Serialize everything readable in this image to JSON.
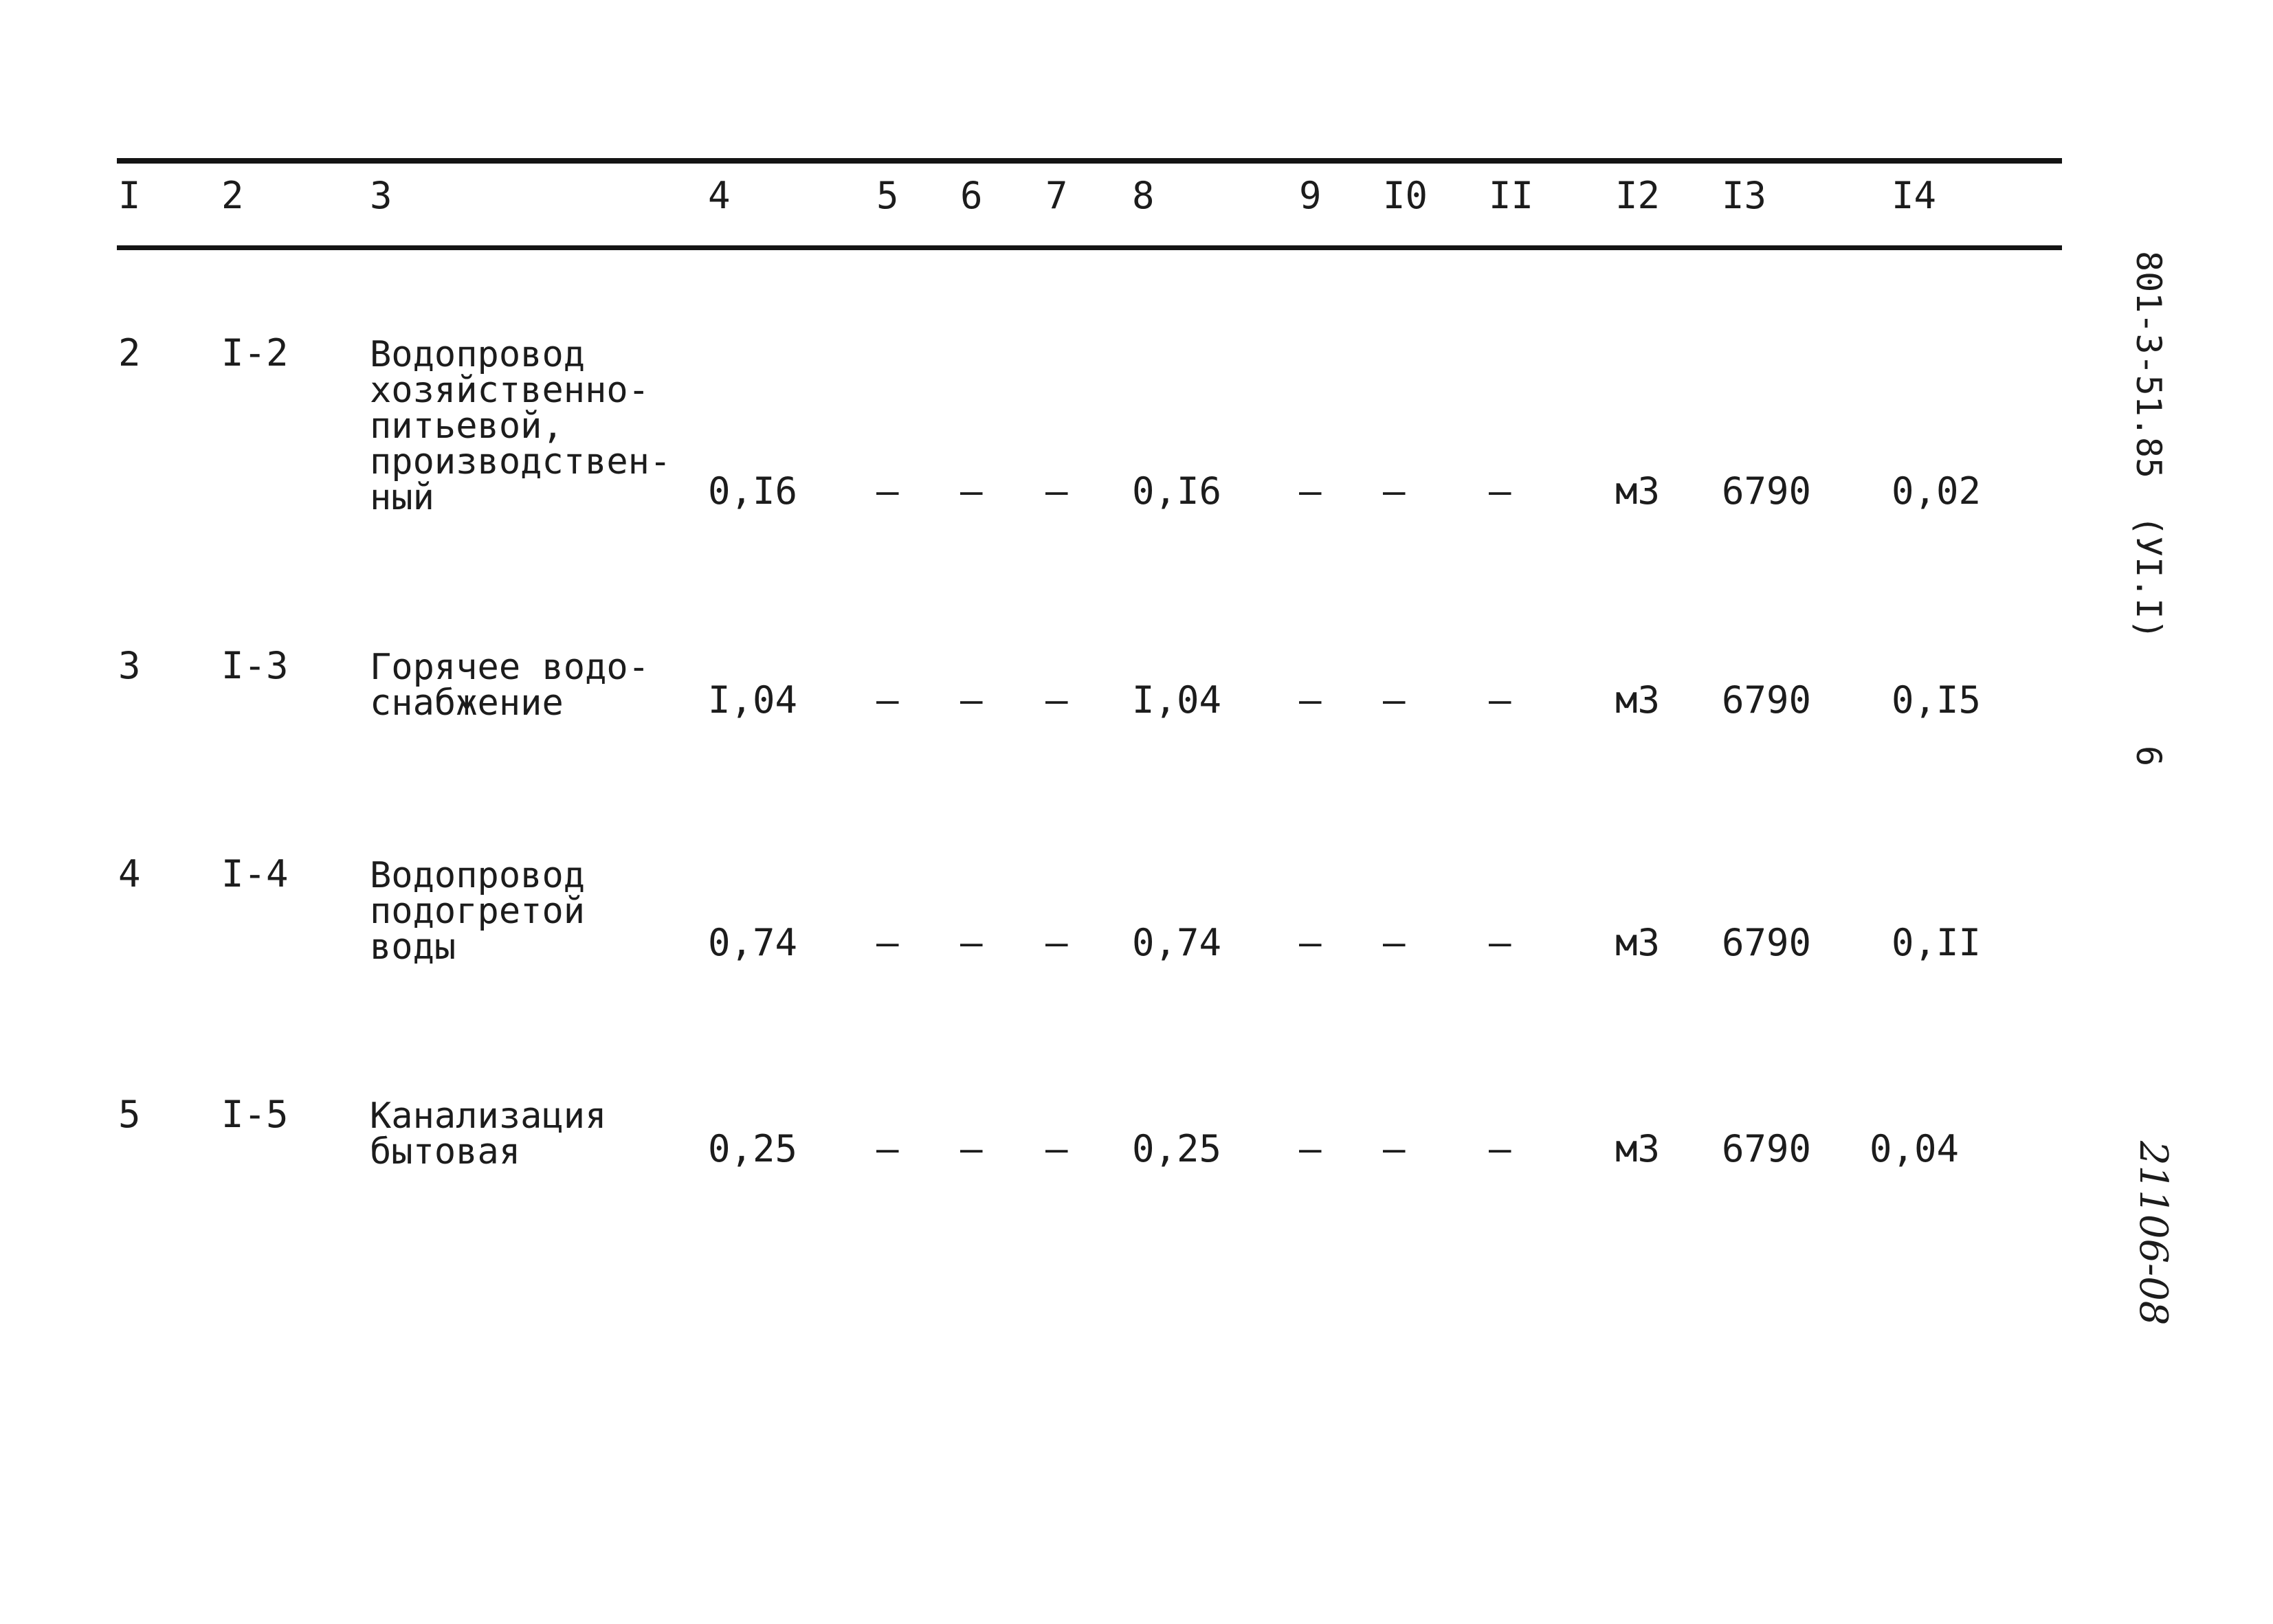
{
  "table": {
    "headers": [
      "I",
      "2",
      "3",
      "4",
      "5",
      "6",
      "7",
      "8",
      "9",
      "I0",
      "II",
      "I2",
      "I3",
      "I4"
    ],
    "rows": [
      {
        "c1": "2",
        "c2": "I-2",
        "c3": "Водопровод\nхозяйственно-\nпитьевой,\nпроизводствен-\nный",
        "c4": "0,I6",
        "c5": "–",
        "c6": "–",
        "c7": "–",
        "c8": "0,I6",
        "c9": "–",
        "c10": "–",
        "c11": "–",
        "c12": "м3",
        "c13": "6790",
        "c14": "0,02"
      },
      {
        "c1": "3",
        "c2": "I-3",
        "c3": "Горячее водо-\nснабжение",
        "c4": "I,04",
        "c5": "–",
        "c6": "–",
        "c7": "–",
        "c8": "I,04",
        "c9": "–",
        "c10": "–",
        "c11": "–",
        "c12": "м3",
        "c13": "6790",
        "c14": "0,I5"
      },
      {
        "c1": "4",
        "c2": "I-4",
        "c3": "Водопровод\nподогретой\nводы",
        "c4": "0,74",
        "c5": "–",
        "c6": "–",
        "c7": "–",
        "c8": "0,74",
        "c9": "–",
        "c10": "–",
        "c11": "–",
        "c12": "м3",
        "c13": "6790",
        "c14": "0,II"
      },
      {
        "c1": "5",
        "c2": "I-5",
        "c3": "Канализация\nбытовая",
        "c4": "0,25",
        "c5": "–",
        "c6": "–",
        "c7": "–",
        "c8": "0,25",
        "c9": "–",
        "c10": "–",
        "c11": "–",
        "c12": "м3",
        "c13": "6790",
        "c14": "0,04"
      }
    ]
  },
  "margin": {
    "doc_code": "801-3-51.85",
    "section": "(УI.I)",
    "page": "6",
    "handwritten": "21106-08"
  }
}
